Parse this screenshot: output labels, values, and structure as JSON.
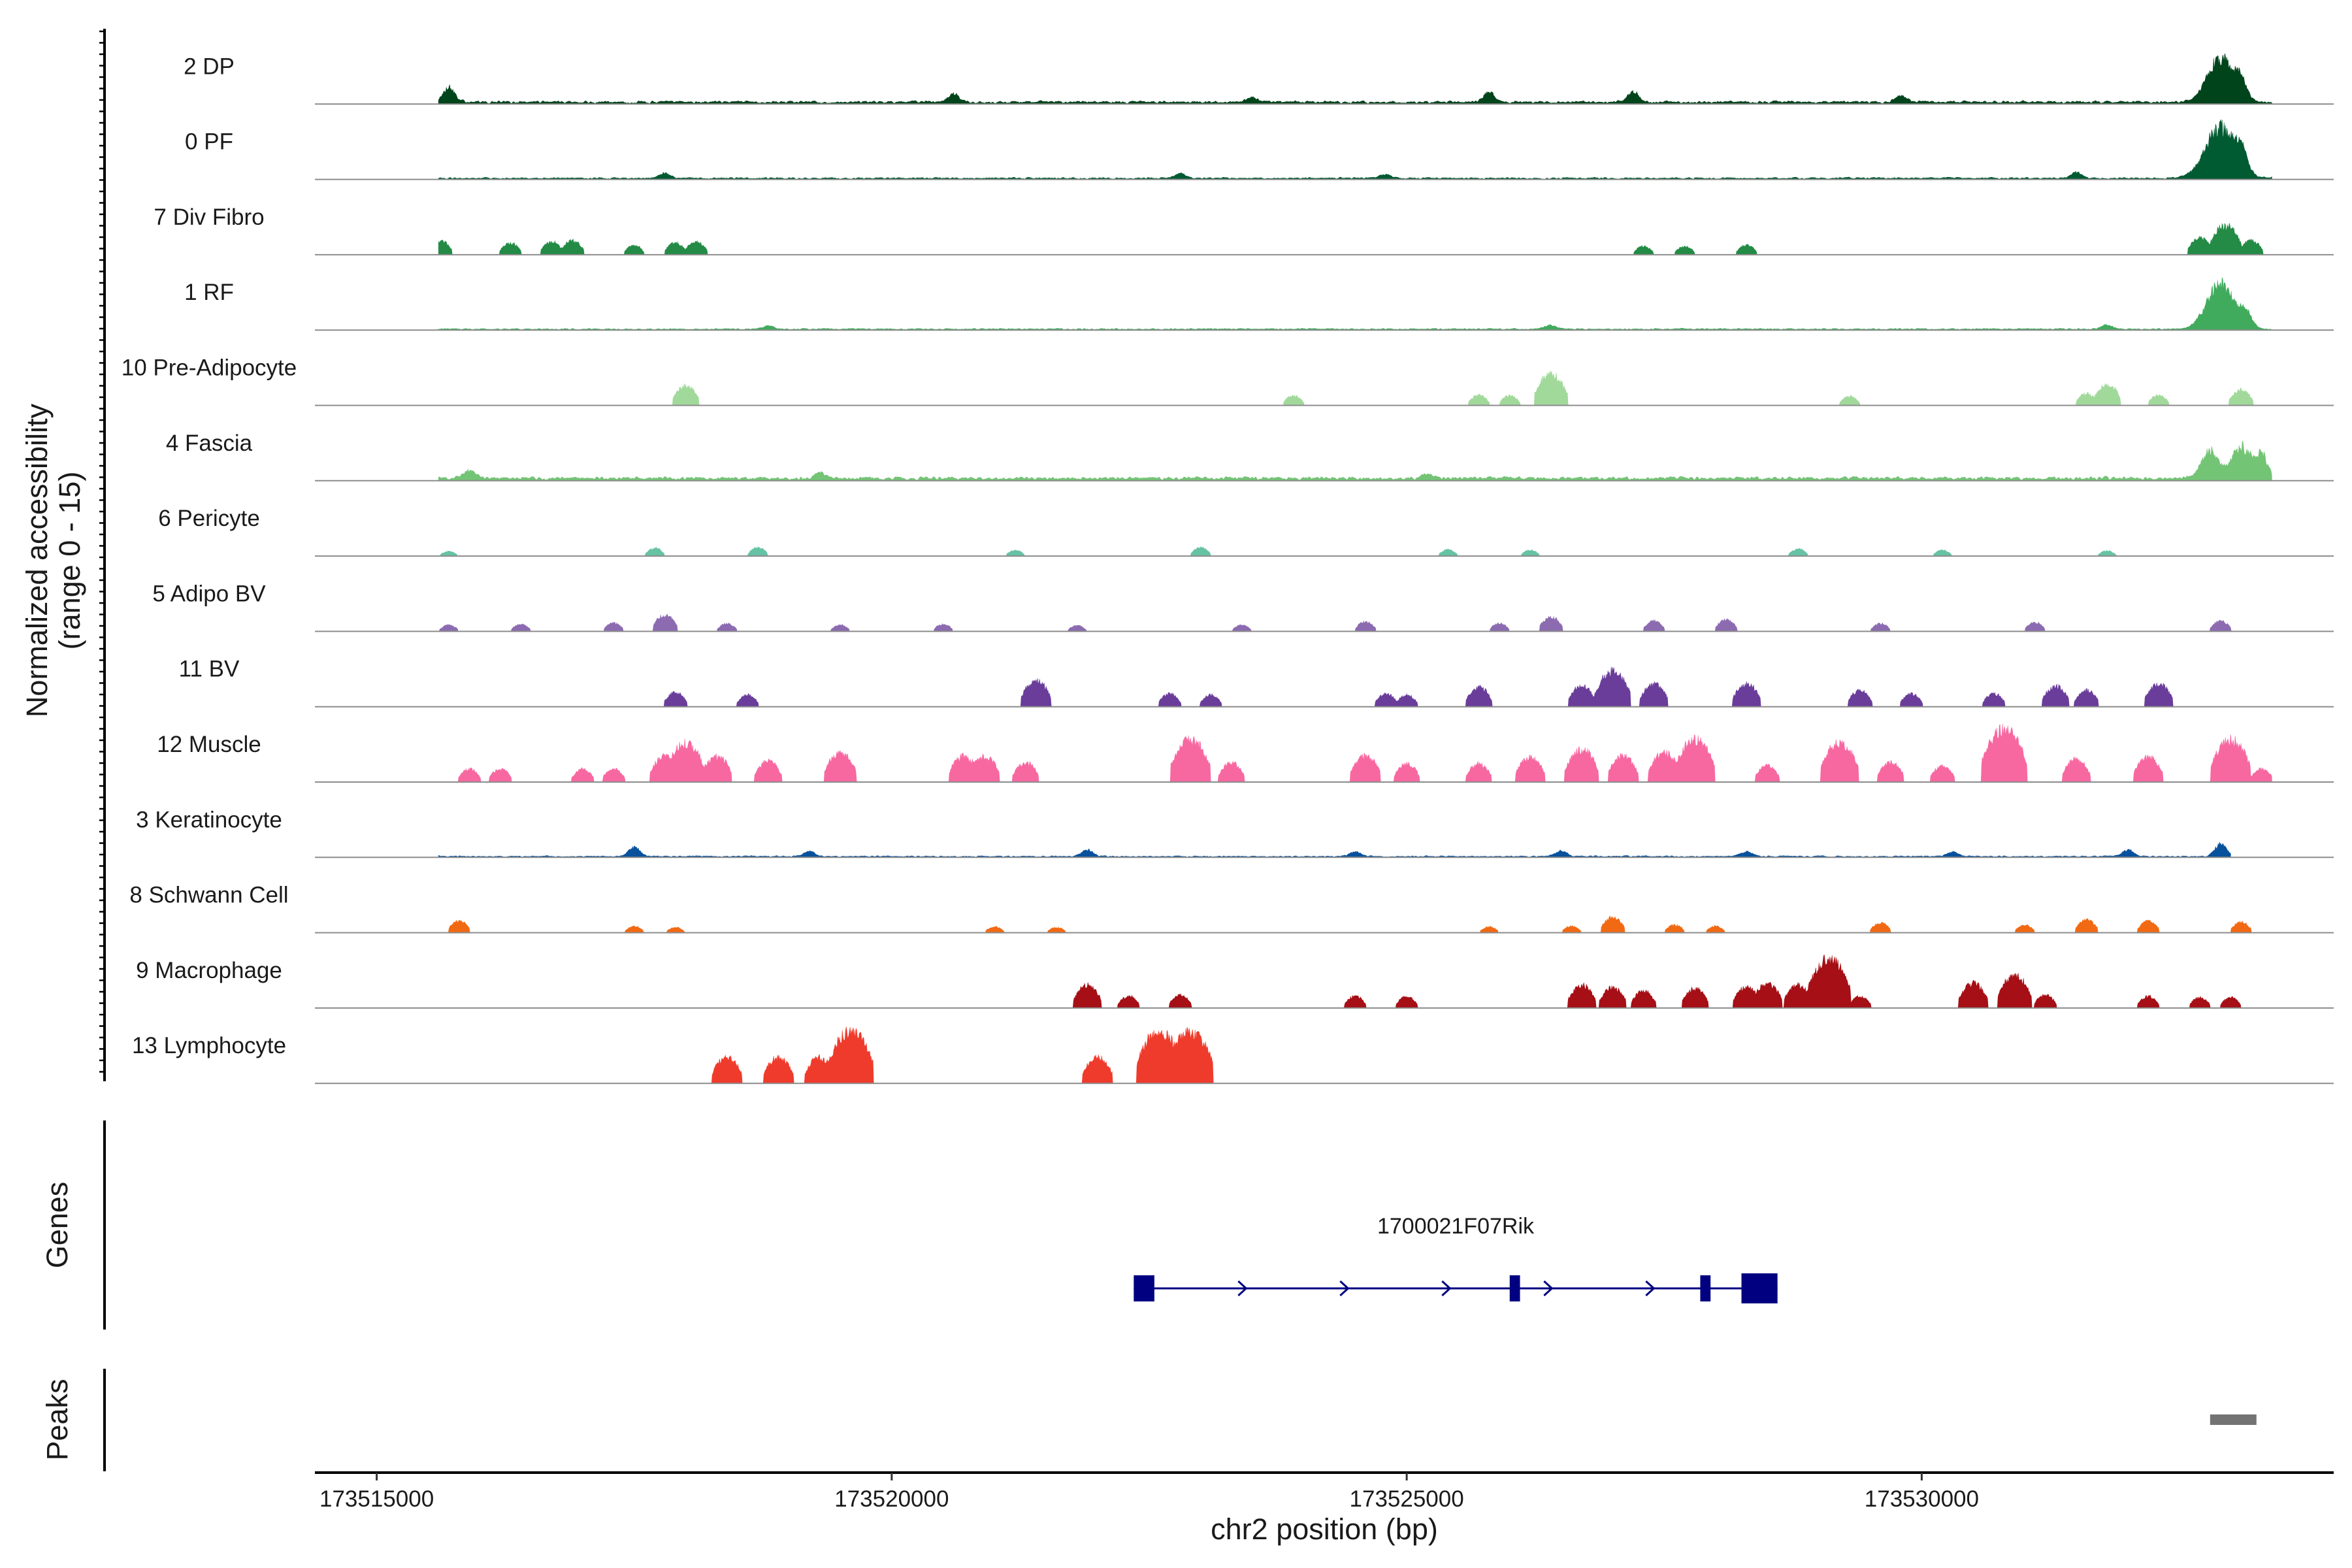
{
  "chart_data": {
    "type": "area",
    "title": "",
    "ylabel": "Normalized accessibility",
    "ylabel_range": "(range 0 - 15)",
    "ylim": [
      0,
      15
    ],
    "xlabel": "chr2 position (bp)",
    "xlim": [
      173514400,
      173534000
    ],
    "x_ticks": [
      173515000,
      173520000,
      173525000,
      173530000
    ],
    "x_tick_labels": [
      "173515000",
      "173520000",
      "173525000",
      "173530000"
    ],
    "tracks": [
      {
        "name": "2 DP",
        "color": "#00441b",
        "pattern": "continuous",
        "start": 173515600,
        "end": 173533400,
        "base": 0.4,
        "peaks": [
          [
            173515700,
            2.4
          ],
          [
            173520600,
            1.2
          ],
          [
            173523500,
            0.8
          ],
          [
            173525800,
            1.5
          ],
          [
            173527200,
            1.6
          ],
          [
            173529800,
            1.0
          ],
          [
            173532900,
            7.0
          ],
          [
            173533100,
            2.5
          ]
        ]
      },
      {
        "name": "0 PF",
        "color": "#005a32",
        "pattern": "continuous",
        "start": 173515600,
        "end": 173533400,
        "base": 0.25,
        "peaks": [
          [
            173517800,
            0.8
          ],
          [
            173522800,
            0.7
          ],
          [
            173524800,
            0.6
          ],
          [
            173531500,
            0.9
          ],
          [
            173532900,
            8.0
          ],
          [
            173533100,
            3.0
          ]
        ]
      },
      {
        "name": "7 Div Fibro",
        "color": "#238b45",
        "pattern": "sparse",
        "start": 173515600,
        "end": 173533400,
        "base": 0,
        "peaks": [
          [
            173515620,
            2.2
          ],
          [
            173516300,
            1.8
          ],
          [
            173516700,
            2.0
          ],
          [
            173516900,
            2.2
          ],
          [
            173517500,
            1.4
          ],
          [
            173517900,
            1.8
          ],
          [
            173518100,
            2.0
          ],
          [
            173527300,
            1.3
          ],
          [
            173527700,
            1.3
          ],
          [
            173528300,
            1.5
          ],
          [
            173532700,
            2.6
          ],
          [
            173532950,
            4.5
          ],
          [
            173533200,
            2.2
          ]
        ]
      },
      {
        "name": "1 RF",
        "color": "#41ab5d",
        "pattern": "continuous",
        "start": 173515600,
        "end": 173533400,
        "base": 0.2,
        "peaks": [
          [
            173518800,
            0.5
          ],
          [
            173526400,
            0.6
          ],
          [
            173531800,
            0.7
          ],
          [
            173532900,
            7.2
          ],
          [
            173533150,
            2.2
          ]
        ]
      },
      {
        "name": "10 Pre-Adipocyte",
        "color": "#a1d99b",
        "pattern": "sparse",
        "start": 173515600,
        "end": 173533400,
        "base": 0,
        "peaks": [
          [
            173518000,
            3.0
          ],
          [
            173523900,
            1.5
          ],
          [
            173525700,
            1.6
          ],
          [
            173526000,
            1.5
          ],
          [
            173526400,
            4.8
          ],
          [
            173529300,
            1.4
          ],
          [
            173531600,
            1.8
          ],
          [
            173531800,
            3.2
          ],
          [
            173532300,
            1.6
          ],
          [
            173533100,
            2.4
          ]
        ]
      },
      {
        "name": "4 Fascia",
        "color": "#74c476",
        "pattern": "continuous",
        "start": 173515600,
        "end": 173533400,
        "base": 0.5,
        "peaks": [
          [
            173515900,
            1.2
          ],
          [
            173519300,
            0.9
          ],
          [
            173525200,
            0.8
          ],
          [
            173532800,
            4.5
          ],
          [
            173533100,
            5.0
          ],
          [
            173533300,
            3.5
          ]
        ]
      },
      {
        "name": "6 Pericyte",
        "color": "#66c2a4",
        "pattern": "sparse",
        "start": 173515600,
        "end": 173533400,
        "base": 0,
        "peaks": [
          [
            173515700,
            0.7
          ],
          [
            173517700,
            1.2
          ],
          [
            173518700,
            1.3
          ],
          [
            173521200,
            0.9
          ],
          [
            173523000,
            1.3
          ],
          [
            173525400,
            1.0
          ],
          [
            173526200,
            0.9
          ],
          [
            173528800,
            1.1
          ],
          [
            173530200,
            0.9
          ],
          [
            173531800,
            0.8
          ]
        ]
      },
      {
        "name": "5 Adipo BV",
        "color": "#8c6bb1",
        "pattern": "sparse",
        "start": 173515600,
        "end": 173533400,
        "base": 0,
        "peaks": [
          [
            173515700,
            1.0
          ],
          [
            173516400,
            1.1
          ],
          [
            173517300,
            1.3
          ],
          [
            173517800,
            2.5
          ],
          [
            173518400,
            1.2
          ],
          [
            173519500,
            1.0
          ],
          [
            173520500,
            1.1
          ],
          [
            173521800,
            0.9
          ],
          [
            173523400,
            1.0
          ],
          [
            173524600,
            1.5
          ],
          [
            173525900,
            1.2
          ],
          [
            173526400,
            2.2
          ],
          [
            173527400,
            1.6
          ],
          [
            173528100,
            1.8
          ],
          [
            173529600,
            1.2
          ],
          [
            173531100,
            1.4
          ],
          [
            173532900,
            1.6
          ]
        ]
      },
      {
        "name": "11 BV",
        "color": "#6a3d9a",
        "pattern": "sparse",
        "start": 173515600,
        "end": 173533400,
        "base": 0,
        "peaks": [
          [
            173517900,
            2.2
          ],
          [
            173518600,
            1.8
          ],
          [
            173521400,
            4.0
          ],
          [
            173522700,
            2.0
          ],
          [
            173523100,
            1.8
          ],
          [
            173524800,
            2.0
          ],
          [
            173525000,
            1.8
          ],
          [
            173525700,
            3.0
          ],
          [
            173526700,
            3.2
          ],
          [
            173527000,
            5.5
          ],
          [
            173527400,
            3.5
          ],
          [
            173528300,
            3.5
          ],
          [
            173529400,
            2.5
          ],
          [
            173529900,
            2.0
          ],
          [
            173530700,
            2.0
          ],
          [
            173531300,
            3.2
          ],
          [
            173531600,
            2.5
          ],
          [
            173532300,
            3.5
          ]
        ]
      },
      {
        "name": "12 Muscle",
        "color": "#f768a1",
        "pattern": "sparse",
        "start": 173515600,
        "end": 173533400,
        "base": 0,
        "peaks": [
          [
            173515900,
            2.0
          ],
          [
            173516200,
            2.0
          ],
          [
            173517000,
            2.0
          ],
          [
            173517300,
            2.0
          ],
          [
            173517800,
            4.0
          ],
          [
            173518000,
            6.0
          ],
          [
            173518300,
            4.0
          ],
          [
            173518800,
            3.2
          ],
          [
            173519500,
            4.5
          ],
          [
            173520700,
            4.0
          ],
          [
            173520900,
            4.0
          ],
          [
            173521300,
            3.0
          ],
          [
            173522900,
            6.5
          ],
          [
            173523300,
            3.0
          ],
          [
            173524600,
            4.0
          ],
          [
            173525000,
            2.8
          ],
          [
            173525700,
            2.8
          ],
          [
            173526200,
            3.8
          ],
          [
            173526700,
            5.0
          ],
          [
            173527100,
            4.0
          ],
          [
            173527500,
            4.5
          ],
          [
            173527800,
            6.5
          ],
          [
            173528500,
            2.5
          ],
          [
            173529200,
            6.0
          ],
          [
            173529700,
            3.0
          ],
          [
            173530200,
            2.5
          ],
          [
            173530800,
            8.0
          ],
          [
            173531500,
            3.5
          ],
          [
            173532200,
            3.8
          ],
          [
            173533000,
            6.5
          ],
          [
            173533300,
            2.0
          ]
        ]
      },
      {
        "name": "3 Keratinocyte",
        "color": "#08519c",
        "pattern": "continuous",
        "start": 173515600,
        "end": 173533000,
        "base": 0.2,
        "peaks": [
          [
            173517500,
            1.5
          ],
          [
            173519200,
            0.8
          ],
          [
            173521900,
            1.0
          ],
          [
            173524500,
            0.7
          ],
          [
            173526500,
            0.9
          ],
          [
            173528300,
            0.8
          ],
          [
            173530300,
            0.7
          ],
          [
            173532000,
            1.0
          ],
          [
            173532900,
            2.0
          ]
        ]
      },
      {
        "name": "8 Schwann Cell",
        "color": "#f16913",
        "pattern": "sparse",
        "start": 173515600,
        "end": 173533400,
        "base": 0,
        "peaks": [
          [
            173515800,
            1.8
          ],
          [
            173517500,
            1.0
          ],
          [
            173517900,
            0.8
          ],
          [
            173521000,
            0.9
          ],
          [
            173521600,
            0.8
          ],
          [
            173525800,
            0.9
          ],
          [
            173526600,
            1.0
          ],
          [
            173527000,
            2.4
          ],
          [
            173527600,
            1.2
          ],
          [
            173528000,
            1.0
          ],
          [
            173529600,
            1.5
          ],
          [
            173531000,
            1.2
          ],
          [
            173531600,
            2.0
          ],
          [
            173532200,
            1.8
          ],
          [
            173533100,
            1.6
          ]
        ]
      },
      {
        "name": "9 Macrophage",
        "color": "#a50f15",
        "pattern": "sparse",
        "start": 173515600,
        "end": 173533400,
        "base": 0,
        "peaks": [
          [
            173521900,
            3.5
          ],
          [
            173522300,
            1.8
          ],
          [
            173522800,
            2.0
          ],
          [
            173524500,
            1.8
          ],
          [
            173525000,
            1.8
          ],
          [
            173526700,
            3.5
          ],
          [
            173527000,
            3.2
          ],
          [
            173527300,
            2.6
          ],
          [
            173527800,
            3.0
          ],
          [
            173528300,
            3.2
          ],
          [
            173528500,
            3.8
          ],
          [
            173528800,
            3.5
          ],
          [
            173529100,
            7.5
          ],
          [
            173529400,
            1.8
          ],
          [
            173530500,
            3.8
          ],
          [
            173530900,
            5.0
          ],
          [
            173531200,
            2.0
          ],
          [
            173532200,
            1.8
          ],
          [
            173532700,
            1.6
          ],
          [
            173533000,
            1.6
          ]
        ]
      },
      {
        "name": "13 Lymphocyte",
        "color": "#ef3b2c",
        "pattern": "sparse",
        "start": 173515600,
        "end": 173533400,
        "base": 0,
        "peaks": [
          [
            173518400,
            4.0
          ],
          [
            173518900,
            4.0
          ],
          [
            173519300,
            4.0
          ],
          [
            173519600,
            8.0
          ],
          [
            173522000,
            4.0
          ],
          [
            173522600,
            8.0
          ],
          [
            173522900,
            8.0
          ]
        ]
      }
    ],
    "genes_label": "Genes",
    "gene": {
      "name": "1700021F07Rik",
      "strand": "+",
      "start": 173522350,
      "end": 173528600,
      "color": "#000080",
      "exons": [
        [
          173522350,
          173522550
        ],
        [
          173526000,
          173526100
        ],
        [
          173527850,
          173527950
        ],
        [
          173528250,
          173528600
        ]
      ]
    },
    "peaks_label": "Peaks",
    "peak_regions": [
      [
        173532800,
        173533250
      ]
    ],
    "peak_color": "#737373"
  }
}
